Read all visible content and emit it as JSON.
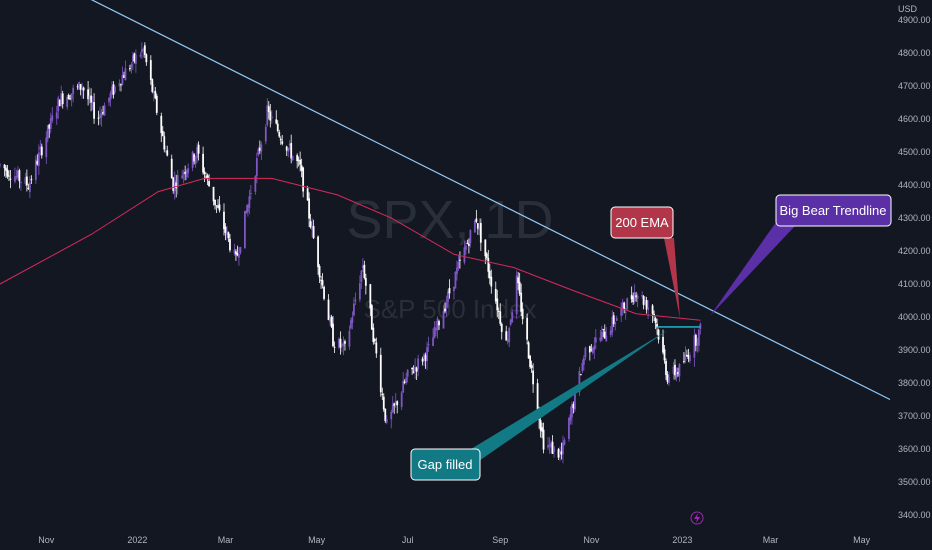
{
  "chart_data": {
    "type": "candlestick",
    "currency": "USD",
    "watermark": {
      "symbol": "SPX, 1D",
      "name": "S&P 500 Index"
    },
    "y_ticks": [
      3400,
      3500,
      3600,
      3700,
      3800,
      3900,
      4000,
      4100,
      4200,
      4300,
      4400,
      4500,
      4600,
      4700,
      4800,
      4900
    ],
    "ylim": [
      3400,
      4900
    ],
    "x_ticks": [
      "Nov",
      "2022",
      "Mar",
      "May",
      "Jul",
      "Sep",
      "Nov",
      "2023",
      "Mar",
      "May"
    ],
    "x_tick_dates": [
      "2021-11-01",
      "2022-01-01",
      "2022-03-01",
      "2022-05-01",
      "2022-07-01",
      "2022-09-01",
      "2022-11-01",
      "2023-01-01",
      "2023-03-01",
      "2023-05-01"
    ],
    "xlim": [
      "2021-10-01",
      "2023-05-20"
    ],
    "price_path": [
      {
        "date": "2021-10-01",
        "value": 4460
      },
      {
        "date": "2021-10-20",
        "value": 4400
      },
      {
        "date": "2021-11-10",
        "value": 4660
      },
      {
        "date": "2021-11-25",
        "value": 4700
      },
      {
        "date": "2021-12-05",
        "value": 4600
      },
      {
        "date": "2021-12-20",
        "value": 4720
      },
      {
        "date": "2022-01-01",
        "value": 4790
      },
      {
        "date": "2022-01-05",
        "value": 4810
      },
      {
        "date": "2022-01-25",
        "value": 4400
      },
      {
        "date": "2022-02-10",
        "value": 4500
      },
      {
        "date": "2022-03-08",
        "value": 4170
      },
      {
        "date": "2022-03-29",
        "value": 4620
      },
      {
        "date": "2022-04-20",
        "value": 4450
      },
      {
        "date": "2022-05-12",
        "value": 3930
      },
      {
        "date": "2022-05-20",
        "value": 3900
      },
      {
        "date": "2022-06-01",
        "value": 4160
      },
      {
        "date": "2022-06-17",
        "value": 3670
      },
      {
        "date": "2022-07-01",
        "value": 3820
      },
      {
        "date": "2022-07-15",
        "value": 3900
      },
      {
        "date": "2022-08-16",
        "value": 4300
      },
      {
        "date": "2022-09-05",
        "value": 3920
      },
      {
        "date": "2022-09-12",
        "value": 4110
      },
      {
        "date": "2022-09-30",
        "value": 3620
      },
      {
        "date": "2022-10-12",
        "value": 3580
      },
      {
        "date": "2022-10-28",
        "value": 3900
      },
      {
        "date": "2022-11-10",
        "value": 3950
      },
      {
        "date": "2022-12-01",
        "value": 4080
      },
      {
        "date": "2022-12-13",
        "value": 4010
      },
      {
        "date": "2022-12-22",
        "value": 3820
      },
      {
        "date": "2022-12-30",
        "value": 3840
      },
      {
        "date": "2023-01-06",
        "value": 3900
      },
      {
        "date": "2023-01-13",
        "value": 3960
      }
    ],
    "ema_200": [
      {
        "date": "2021-10-01",
        "value": 4100
      },
      {
        "date": "2021-12-01",
        "value": 4250
      },
      {
        "date": "2022-01-15",
        "value": 4380
      },
      {
        "date": "2022-02-15",
        "value": 4420
      },
      {
        "date": "2022-04-01",
        "value": 4420
      },
      {
        "date": "2022-05-15",
        "value": 4370
      },
      {
        "date": "2022-06-20",
        "value": 4300
      },
      {
        "date": "2022-08-01",
        "value": 4190
      },
      {
        "date": "2022-09-10",
        "value": 4150
      },
      {
        "date": "2022-10-20",
        "value": 4080
      },
      {
        "date": "2022-12-01",
        "value": 4010
      },
      {
        "date": "2023-01-13",
        "value": 3990
      }
    ],
    "trendline": {
      "start": {
        "date": "2021-10-10",
        "value": 5080
      },
      "end": {
        "date": "2023-05-20",
        "value": 3750
      }
    },
    "gap_line": {
      "start": {
        "date": "2022-12-15",
        "value": 3970
      },
      "end": {
        "date": "2023-01-13",
        "value": 3970
      }
    },
    "annotations": {
      "ema": {
        "text": "200 EMA",
        "color": "#b2364a"
      },
      "trend": {
        "text": "Big Bear Trendline",
        "color": "#5b2fa6"
      },
      "gap": {
        "text": "Gap filled",
        "color": "#127a85"
      }
    },
    "colors": {
      "background": "#131722",
      "candle_up": "#7e57c2",
      "candle_down": "#ffffff",
      "ema": "#d62a5c",
      "trendline": "#90caf9",
      "gap_line": "#1fc4d6",
      "axis_text": "#b2b5be"
    }
  }
}
